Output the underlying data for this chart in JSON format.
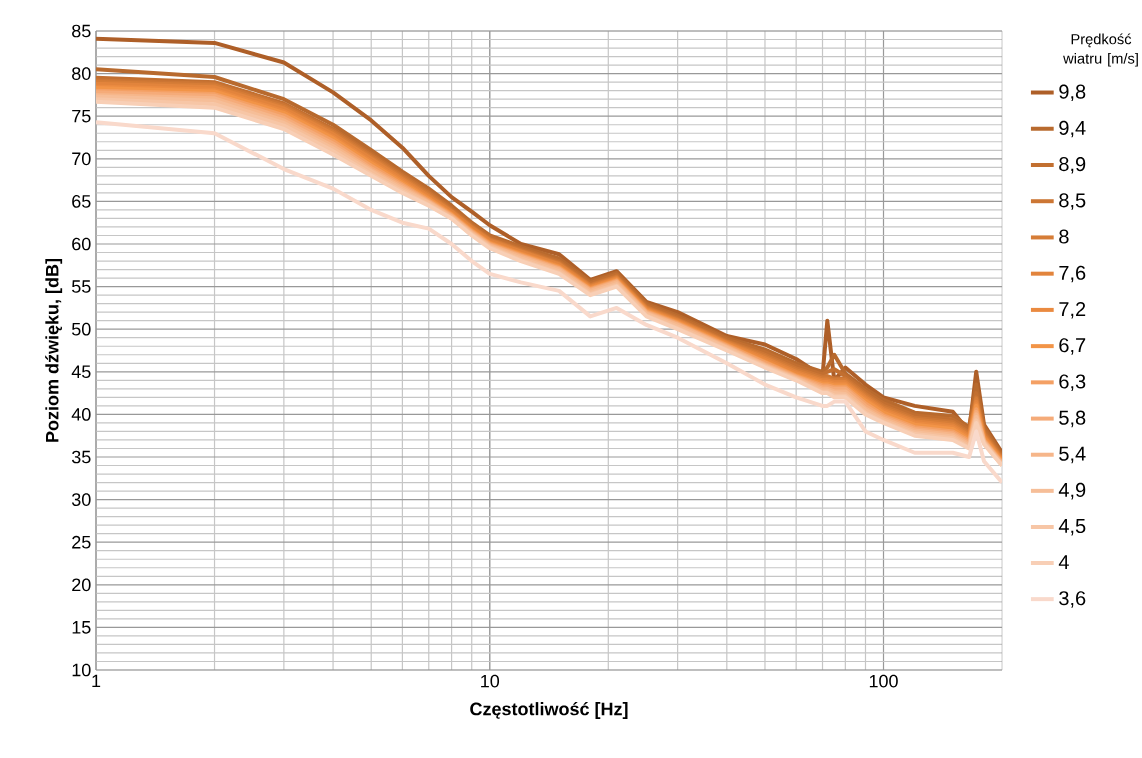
{
  "chart_data": {
    "type": "line",
    "xlabel": "Częstotliwość [Hz]",
    "ylabel": "Poziom dźwięku, [dB]",
    "legend_title": "Prędkość wiatru [m/s]",
    "log": "x",
    "grid": true,
    "legend": "right",
    "marker": "none",
    "line_style": "solid",
    "xlim": [
      1,
      200
    ],
    "ylim": [
      10,
      85
    ],
    "xticks": [
      1,
      10,
      100
    ],
    "yticks": [
      10,
      15,
      20,
      25,
      30,
      35,
      40,
      45,
      50,
      55,
      60,
      65,
      70,
      75,
      80,
      85
    ],
    "x": [
      1,
      2,
      3,
      4,
      5,
      6,
      7,
      8,
      9,
      10,
      12,
      15,
      18,
      21,
      25,
      30,
      40,
      50,
      60,
      70,
      72,
      75,
      80,
      90,
      100,
      120,
      150,
      165,
      172,
      180,
      200
    ],
    "series": [
      {
        "name": "9,8",
        "color": "#ae5f28",
        "values": [
          84.1,
          83.6,
          81.3,
          77.8,
          74.5,
          71.3,
          68,
          65.5,
          63.8,
          62.2,
          60,
          58.8,
          55.8,
          56.8,
          53.2,
          52,
          49.2,
          48.2,
          46.5,
          44.5,
          51,
          44,
          45.5,
          43.5,
          42,
          41,
          40.3,
          38,
          45,
          38.8,
          35.5
        ]
      },
      {
        "name": "9,4",
        "color": "#b86a2e",
        "values": [
          80.5,
          79.6,
          77,
          74,
          71,
          68.5,
          66.5,
          64.5,
          62.5,
          61,
          59.7,
          58.3,
          55.6,
          56.6,
          53,
          51.6,
          49,
          47.6,
          46,
          45,
          45.5,
          47,
          44.8,
          43,
          41.7,
          40.2,
          39.8,
          38.5,
          43.5,
          38.5,
          35.2
        ]
      },
      {
        "name": "8,9",
        "color": "#c26f30",
        "values": [
          79.5,
          79,
          76.5,
          73.5,
          70.6,
          68.2,
          66.2,
          64.2,
          62.3,
          60.8,
          59.5,
          58,
          55.4,
          56.4,
          52.8,
          51.4,
          48.8,
          47.3,
          45.7,
          44.7,
          45,
          45.3,
          44.5,
          42.7,
          41.3,
          39.9,
          39.4,
          38.2,
          42.5,
          38.2,
          35
        ]
      },
      {
        "name": "8,5",
        "color": "#cc7634",
        "values": [
          79.2,
          78.8,
          76.3,
          73.3,
          70.4,
          68,
          66,
          64,
          62.1,
          60.6,
          59.3,
          57.8,
          55.2,
          56.2,
          52.6,
          51.2,
          48.6,
          47,
          45.4,
          44.4,
          44.5,
          44.2,
          44.2,
          42.4,
          41,
          39.6,
          39.1,
          37.9,
          42,
          37.9,
          34.9
        ]
      },
      {
        "name": "8",
        "color": "#d67d37",
        "values": [
          79,
          78.6,
          76.1,
          73.1,
          70.2,
          67.8,
          65.8,
          63.9,
          62,
          60.5,
          59.2,
          57.7,
          55.1,
          56.1,
          52.5,
          51.1,
          48.5,
          46.8,
          45.2,
          44.2,
          44.2,
          44,
          44,
          42.2,
          40.8,
          39.4,
          38.9,
          37.7,
          41.8,
          37.7,
          34.8
        ]
      },
      {
        "name": "7,6",
        "color": "#e2843c",
        "values": [
          78.8,
          78.4,
          75.9,
          72.9,
          70,
          67.6,
          65.6,
          63.8,
          61.9,
          60.4,
          59.1,
          57.6,
          55,
          56,
          52.4,
          51,
          48.4,
          46.6,
          45,
          44,
          44,
          43.8,
          43.8,
          42,
          40.6,
          39.2,
          38.7,
          37.5,
          41.5,
          37.5,
          34.7
        ]
      },
      {
        "name": "7,2",
        "color": "#ea8a40",
        "values": [
          78.5,
          78.1,
          75.6,
          72.6,
          69.7,
          67.4,
          65.4,
          63.6,
          61.7,
          60.2,
          58.9,
          57.4,
          54.9,
          55.9,
          52.3,
          50.9,
          48.3,
          46.4,
          44.8,
          43.8,
          43.8,
          43.6,
          43.6,
          41.8,
          40.4,
          39,
          38.5,
          37.3,
          41.2,
          37.4,
          34.6
        ]
      },
      {
        "name": "6,7",
        "color": "#f29447",
        "values": [
          78.3,
          77.9,
          75.4,
          72.4,
          69.5,
          67.2,
          65.3,
          63.5,
          61.6,
          60.1,
          58.8,
          57.3,
          54.8,
          55.8,
          52.2,
          50.8,
          48.2,
          46.2,
          44.6,
          43.6,
          43.6,
          43.4,
          43.4,
          41.6,
          40.2,
          38.8,
          38.3,
          37.1,
          41,
          37.2,
          34.5
        ]
      },
      {
        "name": "6,3",
        "color": "#f4a064",
        "values": [
          78,
          77.6,
          75.1,
          72.1,
          69.2,
          67,
          65.1,
          63.4,
          61.5,
          60,
          58.7,
          57.2,
          54.7,
          55.7,
          52.1,
          50.7,
          48.1,
          46.1,
          44.5,
          43.4,
          43.4,
          43.2,
          43.2,
          41.3,
          39.9,
          38.5,
          38,
          36.9,
          40.6,
          37,
          34.4
        ]
      },
      {
        "name": "5,8",
        "color": "#f5ab79",
        "values": [
          77.8,
          77.4,
          74.8,
          71.8,
          68.9,
          66.8,
          65,
          63.3,
          61.4,
          59.9,
          58.6,
          57.1,
          54.6,
          55.6,
          52,
          50.6,
          48,
          45.9,
          44.4,
          43.2,
          43.2,
          43,
          43,
          41,
          39.7,
          38.3,
          37.8,
          36.7,
          40.3,
          36.9,
          34.3
        ]
      },
      {
        "name": "5,4",
        "color": "#f6b68a",
        "values": [
          77.5,
          77.1,
          74.5,
          71.5,
          68.7,
          66.6,
          64.9,
          63.2,
          61.3,
          59.8,
          58.5,
          57,
          54.5,
          55.5,
          51.9,
          50.5,
          47.9,
          45.8,
          44.3,
          43,
          43,
          42.7,
          42.7,
          40.7,
          39.5,
          38.1,
          37.6,
          36.5,
          40,
          36.8,
          34.2
        ]
      },
      {
        "name": "4,9",
        "color": "#f6be98",
        "values": [
          77.3,
          76.8,
          74.2,
          71.2,
          68.5,
          66.4,
          64.8,
          63.1,
          61.2,
          59.7,
          58.3,
          56.8,
          54.3,
          55.3,
          51.8,
          50.3,
          47.8,
          45.7,
          44.2,
          42.8,
          42.8,
          42.5,
          42.4,
          40.5,
          39.3,
          37.9,
          37.4,
          36.3,
          39.7,
          36.7,
          34.1
        ]
      },
      {
        "name": "4,5",
        "color": "#f7c6a6",
        "values": [
          77,
          76.4,
          73.9,
          70.9,
          68.2,
          66.2,
          64.6,
          63,
          61.1,
          59.6,
          58.1,
          56.6,
          54.1,
          55.1,
          51.6,
          50.1,
          47.6,
          45.6,
          44.1,
          42.6,
          42.6,
          42.2,
          42.2,
          40.2,
          39.1,
          37.7,
          37.2,
          36.1,
          39.3,
          36.6,
          34
        ]
      },
      {
        "name": "4",
        "color": "#f8cfb6",
        "values": [
          76.7,
          76,
          73.5,
          70.5,
          68,
          66,
          64.5,
          63,
          61,
          59.5,
          58,
          56.5,
          54,
          55,
          51.5,
          50,
          47.5,
          45.5,
          44,
          42.5,
          42.5,
          42,
          42,
          40,
          39,
          37.5,
          37,
          36,
          39,
          36.5,
          34
        ]
      },
      {
        "name": "3,6",
        "color": "#f9d9cb",
        "values": [
          74.3,
          73,
          68.8,
          66.5,
          64,
          62.5,
          61.8,
          60,
          58,
          56.5,
          55.5,
          54.5,
          51.5,
          52.5,
          50.5,
          49,
          46,
          43.5,
          42,
          41,
          41,
          41.5,
          41.5,
          38,
          37,
          35.5,
          35.5,
          35,
          38,
          34.5,
          32
        ]
      }
    ]
  }
}
